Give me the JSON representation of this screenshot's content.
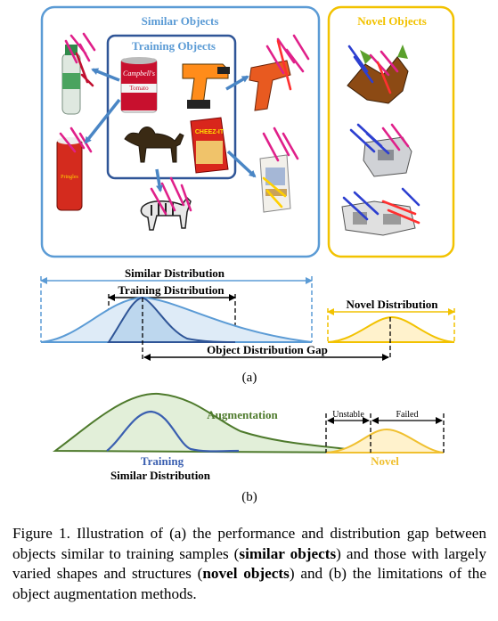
{
  "panel_a": {
    "similar_box_title": "Similar Objects",
    "training_box_title": "Training Objects",
    "novel_box_title": "Novel Objects",
    "similar_distribution_label": "Similar Distribution",
    "training_distribution_label": "Training Distribution",
    "novel_distribution_label": "Novel Distribution",
    "gap_label": "Object Distribution Gap",
    "sublabel": "(a)",
    "colors": {
      "similar": "#5b9bd5",
      "training_box": "#2f5597",
      "novel": "#f2c200",
      "arrow": "#4a86c5"
    }
  },
  "panel_b": {
    "augmentation_label": "Augmentation",
    "training_label": "Training",
    "similar_distribution_label": "Similar Distribution",
    "novel_label": "Novel",
    "unstable_label": "Unstable",
    "failed_label": "Failed",
    "sublabel": "(b)",
    "colors": {
      "augmentation": "#4e7a2c",
      "training": "#3a5fb0",
      "novel": "#f0c030"
    }
  },
  "caption": {
    "prefix": "Figure 1.  Illustration of (a) the performance and distribution gap between objects similar to training samples (",
    "bold1": "similar objects",
    "middle": ") and those with largely varied shapes and structures (",
    "bold2": "novel objects",
    "suffix": ") and (b) the limitations of the object augmentation methods."
  },
  "objects": {
    "soup_can_label": "Campbell's",
    "soup_can_sub": "Tomato",
    "cracker_box_label": "CHEEZ-IT",
    "chips_can_label": "Pringles"
  }
}
